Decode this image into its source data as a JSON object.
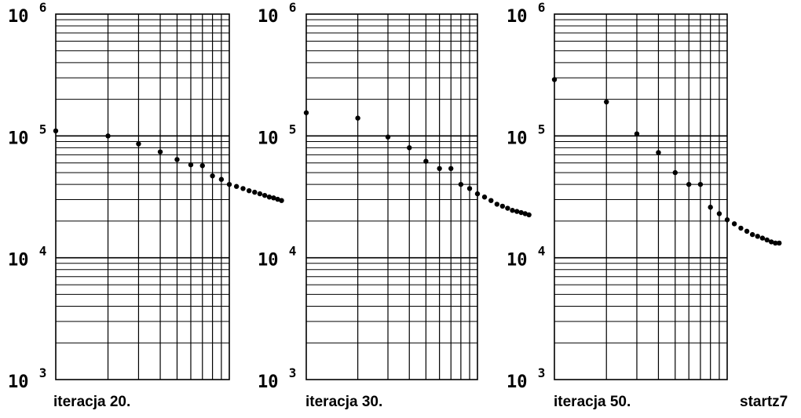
{
  "figure_label": "startz7",
  "chart_data": [
    {
      "type": "scatter",
      "title": "",
      "caption": "iteracja 20.",
      "xscale": "log",
      "xrange_decades": 1,
      "yscale": "log",
      "ylim": [
        1000,
        1000000
      ],
      "yticks": [
        {
          "base": "10",
          "exp": "3"
        },
        {
          "base": "10",
          "exp": "4"
        },
        {
          "base": "10",
          "exp": "5"
        },
        {
          "base": "10",
          "exp": "6"
        }
      ],
      "grid": true,
      "x": [
        1,
        2,
        3,
        4,
        5,
        6,
        7,
        8,
        9,
        10,
        11,
        12,
        13,
        14,
        15,
        16,
        17,
        18,
        19,
        20
      ],
      "y": [
        110000,
        100000,
        86000,
        74000,
        64000,
        58000,
        57000,
        47000,
        44000,
        40000,
        38500,
        37000,
        35500,
        34500,
        33500,
        32500,
        31500,
        31000,
        30200,
        29500
      ]
    },
    {
      "type": "scatter",
      "title": "",
      "caption": "iteracja 30.",
      "xscale": "log",
      "xrange_decades": 1,
      "yscale": "log",
      "ylim": [
        1000,
        1000000
      ],
      "yticks": [
        {
          "base": "10",
          "exp": "3"
        },
        {
          "base": "10",
          "exp": "4"
        },
        {
          "base": "10",
          "exp": "5"
        },
        {
          "base": "10",
          "exp": "6"
        }
      ],
      "grid": true,
      "x": [
        1,
        2,
        3,
        4,
        5,
        6,
        7,
        8,
        9,
        10,
        11,
        12,
        13,
        14,
        15,
        16,
        17,
        18,
        19,
        20
      ],
      "y": [
        155000,
        140000,
        98000,
        80000,
        62000,
        54000,
        54000,
        40000,
        37000,
        33500,
        31500,
        29500,
        27500,
        26500,
        25500,
        24500,
        24000,
        23500,
        23000,
        22500
      ]
    },
    {
      "type": "scatter",
      "title": "",
      "caption": "iteracja 50.",
      "xscale": "log",
      "xrange_decades": 1,
      "yscale": "log",
      "ylim": [
        1000,
        1000000
      ],
      "yticks": [
        {
          "base": "10",
          "exp": "3"
        },
        {
          "base": "10",
          "exp": "4"
        },
        {
          "base": "10",
          "exp": "5"
        },
        {
          "base": "10",
          "exp": "6"
        }
      ],
      "grid": true,
      "x": [
        1,
        2,
        3,
        4,
        5,
        6,
        7,
        8,
        9,
        10,
        11,
        12,
        13,
        14,
        15,
        16,
        17,
        18,
        19,
        20
      ],
      "y": [
        290000,
        190000,
        104000,
        73000,
        50000,
        40000,
        40000,
        26000,
        23000,
        20500,
        19000,
        17500,
        16500,
        15500,
        15000,
        14500,
        14000,
        13500,
        13200,
        13200
      ]
    }
  ]
}
